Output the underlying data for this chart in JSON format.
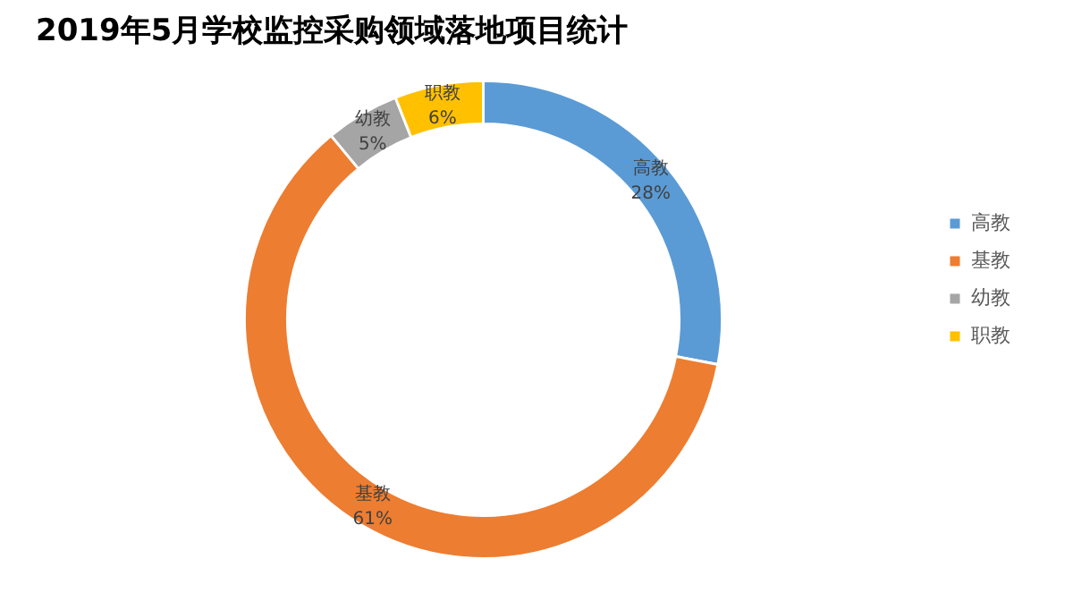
{
  "chart_data": {
    "type": "donut",
    "title": "2019年5月学校监控采购领域落地项目统计",
    "categories": [
      "高教",
      "基教",
      "幼教",
      "职教"
    ],
    "values": [
      28,
      61,
      5,
      6
    ],
    "colors": [
      "#5b9bd5",
      "#ed7d31",
      "#a5a5a5",
      "#ffc000"
    ],
    "value_labels": [
      "28%",
      "61%",
      "5%",
      "6%"
    ],
    "legend": "right"
  }
}
